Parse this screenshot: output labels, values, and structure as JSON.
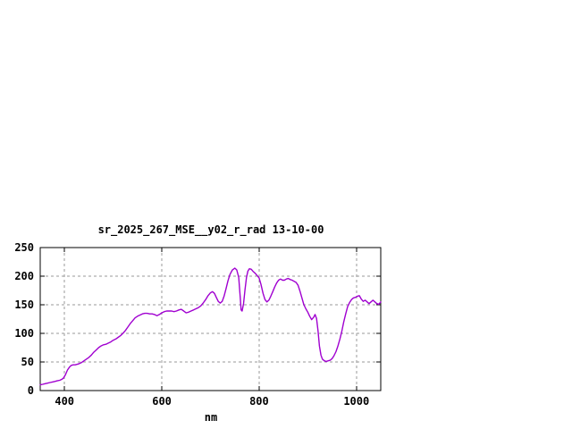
{
  "chart_data": {
    "type": "line",
    "title": "sr_2025_267_MSE__y02_r_rad 13-10-00",
    "xlabel": "nm",
    "ylabel": "",
    "xlim": [
      350,
      1050
    ],
    "ylim": [
      0,
      250
    ],
    "xticks": [
      400,
      600,
      800,
      1000
    ],
    "yticks": [
      0,
      50,
      100,
      150,
      200,
      250
    ],
    "grid": true,
    "grid_style": "dashed",
    "legend_position": "none",
    "line_color": "#a000d0",
    "axis_color": "#000000",
    "grid_color": "#9a9a9a",
    "background_color": "#ffffff",
    "series": [
      {
        "name": "sr_2025_267_MSE__y02_r_rad 13-10-00",
        "points": [
          [
            350,
            10
          ],
          [
            355,
            11
          ],
          [
            360,
            12
          ],
          [
            365,
            13
          ],
          [
            370,
            14
          ],
          [
            375,
            15
          ],
          [
            380,
            16
          ],
          [
            385,
            17
          ],
          [
            390,
            18
          ],
          [
            395,
            20
          ],
          [
            398,
            22
          ],
          [
            402,
            28
          ],
          [
            406,
            36
          ],
          [
            410,
            41
          ],
          [
            414,
            44
          ],
          [
            418,
            45
          ],
          [
            422,
            45
          ],
          [
            426,
            46
          ],
          [
            430,
            47
          ],
          [
            435,
            49
          ],
          [
            440,
            52
          ],
          [
            445,
            55
          ],
          [
            450,
            58
          ],
          [
            455,
            62
          ],
          [
            460,
            67
          ],
          [
            465,
            71
          ],
          [
            470,
            75
          ],
          [
            475,
            78
          ],
          [
            480,
            80
          ],
          [
            485,
            81
          ],
          [
            490,
            83
          ],
          [
            495,
            85
          ],
          [
            500,
            88
          ],
          [
            505,
            90
          ],
          [
            510,
            93
          ],
          [
            515,
            96
          ],
          [
            520,
            100
          ],
          [
            525,
            105
          ],
          [
            530,
            111
          ],
          [
            535,
            117
          ],
          [
            540,
            122
          ],
          [
            545,
            127
          ],
          [
            550,
            130
          ],
          [
            555,
            132
          ],
          [
            560,
            134
          ],
          [
            565,
            135
          ],
          [
            570,
            135
          ],
          [
            575,
            134
          ],
          [
            580,
            134
          ],
          [
            585,
            133
          ],
          [
            590,
            131
          ],
          [
            595,
            133
          ],
          [
            600,
            136
          ],
          [
            605,
            138
          ],
          [
            610,
            139
          ],
          [
            615,
            139
          ],
          [
            620,
            139
          ],
          [
            625,
            138
          ],
          [
            630,
            139
          ],
          [
            635,
            141
          ],
          [
            640,
            142
          ],
          [
            645,
            139
          ],
          [
            650,
            136
          ],
          [
            655,
            137
          ],
          [
            660,
            139
          ],
          [
            665,
            141
          ],
          [
            670,
            143
          ],
          [
            675,
            145
          ],
          [
            680,
            148
          ],
          [
            685,
            153
          ],
          [
            690,
            159
          ],
          [
            695,
            166
          ],
          [
            700,
            171
          ],
          [
            704,
            173
          ],
          [
            708,
            170
          ],
          [
            712,
            163
          ],
          [
            716,
            156
          ],
          [
            720,
            153
          ],
          [
            724,
            156
          ],
          [
            728,
            165
          ],
          [
            732,
            178
          ],
          [
            736,
            192
          ],
          [
            740,
            203
          ],
          [
            745,
            211
          ],
          [
            750,
            214
          ],
          [
            754,
            211
          ],
          [
            758,
            198
          ],
          [
            761,
            165
          ],
          [
            763,
            141
          ],
          [
            765,
            139
          ],
          [
            768,
            152
          ],
          [
            771,
            176
          ],
          [
            774,
            198
          ],
          [
            777,
            209
          ],
          [
            780,
            213
          ],
          [
            784,
            212
          ],
          [
            788,
            208
          ],
          [
            792,
            205
          ],
          [
            796,
            201
          ],
          [
            800,
            197
          ],
          [
            804,
            185
          ],
          [
            808,
            170
          ],
          [
            812,
            159
          ],
          [
            816,
            155
          ],
          [
            820,
            158
          ],
          [
            824,
            165
          ],
          [
            828,
            173
          ],
          [
            832,
            181
          ],
          [
            836,
            188
          ],
          [
            840,
            193
          ],
          [
            844,
            195
          ],
          [
            848,
            193
          ],
          [
            852,
            193
          ],
          [
            856,
            195
          ],
          [
            860,
            196
          ],
          [
            864,
            194
          ],
          [
            868,
            193
          ],
          [
            872,
            191
          ],
          [
            876,
            189
          ],
          [
            880,
            184
          ],
          [
            884,
            174
          ],
          [
            888,
            162
          ],
          [
            892,
            150
          ],
          [
            896,
            143
          ],
          [
            900,
            137
          ],
          [
            904,
            130
          ],
          [
            908,
            124
          ],
          [
            912,
            128
          ],
          [
            915,
            133
          ],
          [
            918,
            126
          ],
          [
            921,
            105
          ],
          [
            924,
            78
          ],
          [
            927,
            62
          ],
          [
            930,
            55
          ],
          [
            934,
            52
          ],
          [
            938,
            51
          ],
          [
            942,
            52
          ],
          [
            946,
            53
          ],
          [
            950,
            56
          ],
          [
            954,
            61
          ],
          [
            958,
            68
          ],
          [
            962,
            78
          ],
          [
            966,
            90
          ],
          [
            970,
            104
          ],
          [
            974,
            120
          ],
          [
            978,
            134
          ],
          [
            982,
            147
          ],
          [
            986,
            154
          ],
          [
            990,
            159
          ],
          [
            994,
            162
          ],
          [
            998,
            163
          ],
          [
            1002,
            165
          ],
          [
            1006,
            166
          ],
          [
            1010,
            160
          ],
          [
            1014,
            156
          ],
          [
            1018,
            158
          ],
          [
            1022,
            155
          ],
          [
            1026,
            152
          ],
          [
            1030,
            155
          ],
          [
            1034,
            158
          ],
          [
            1038,
            155
          ],
          [
            1042,
            152
          ],
          [
            1046,
            151
          ],
          [
            1050,
            155
          ]
        ]
      }
    ]
  }
}
